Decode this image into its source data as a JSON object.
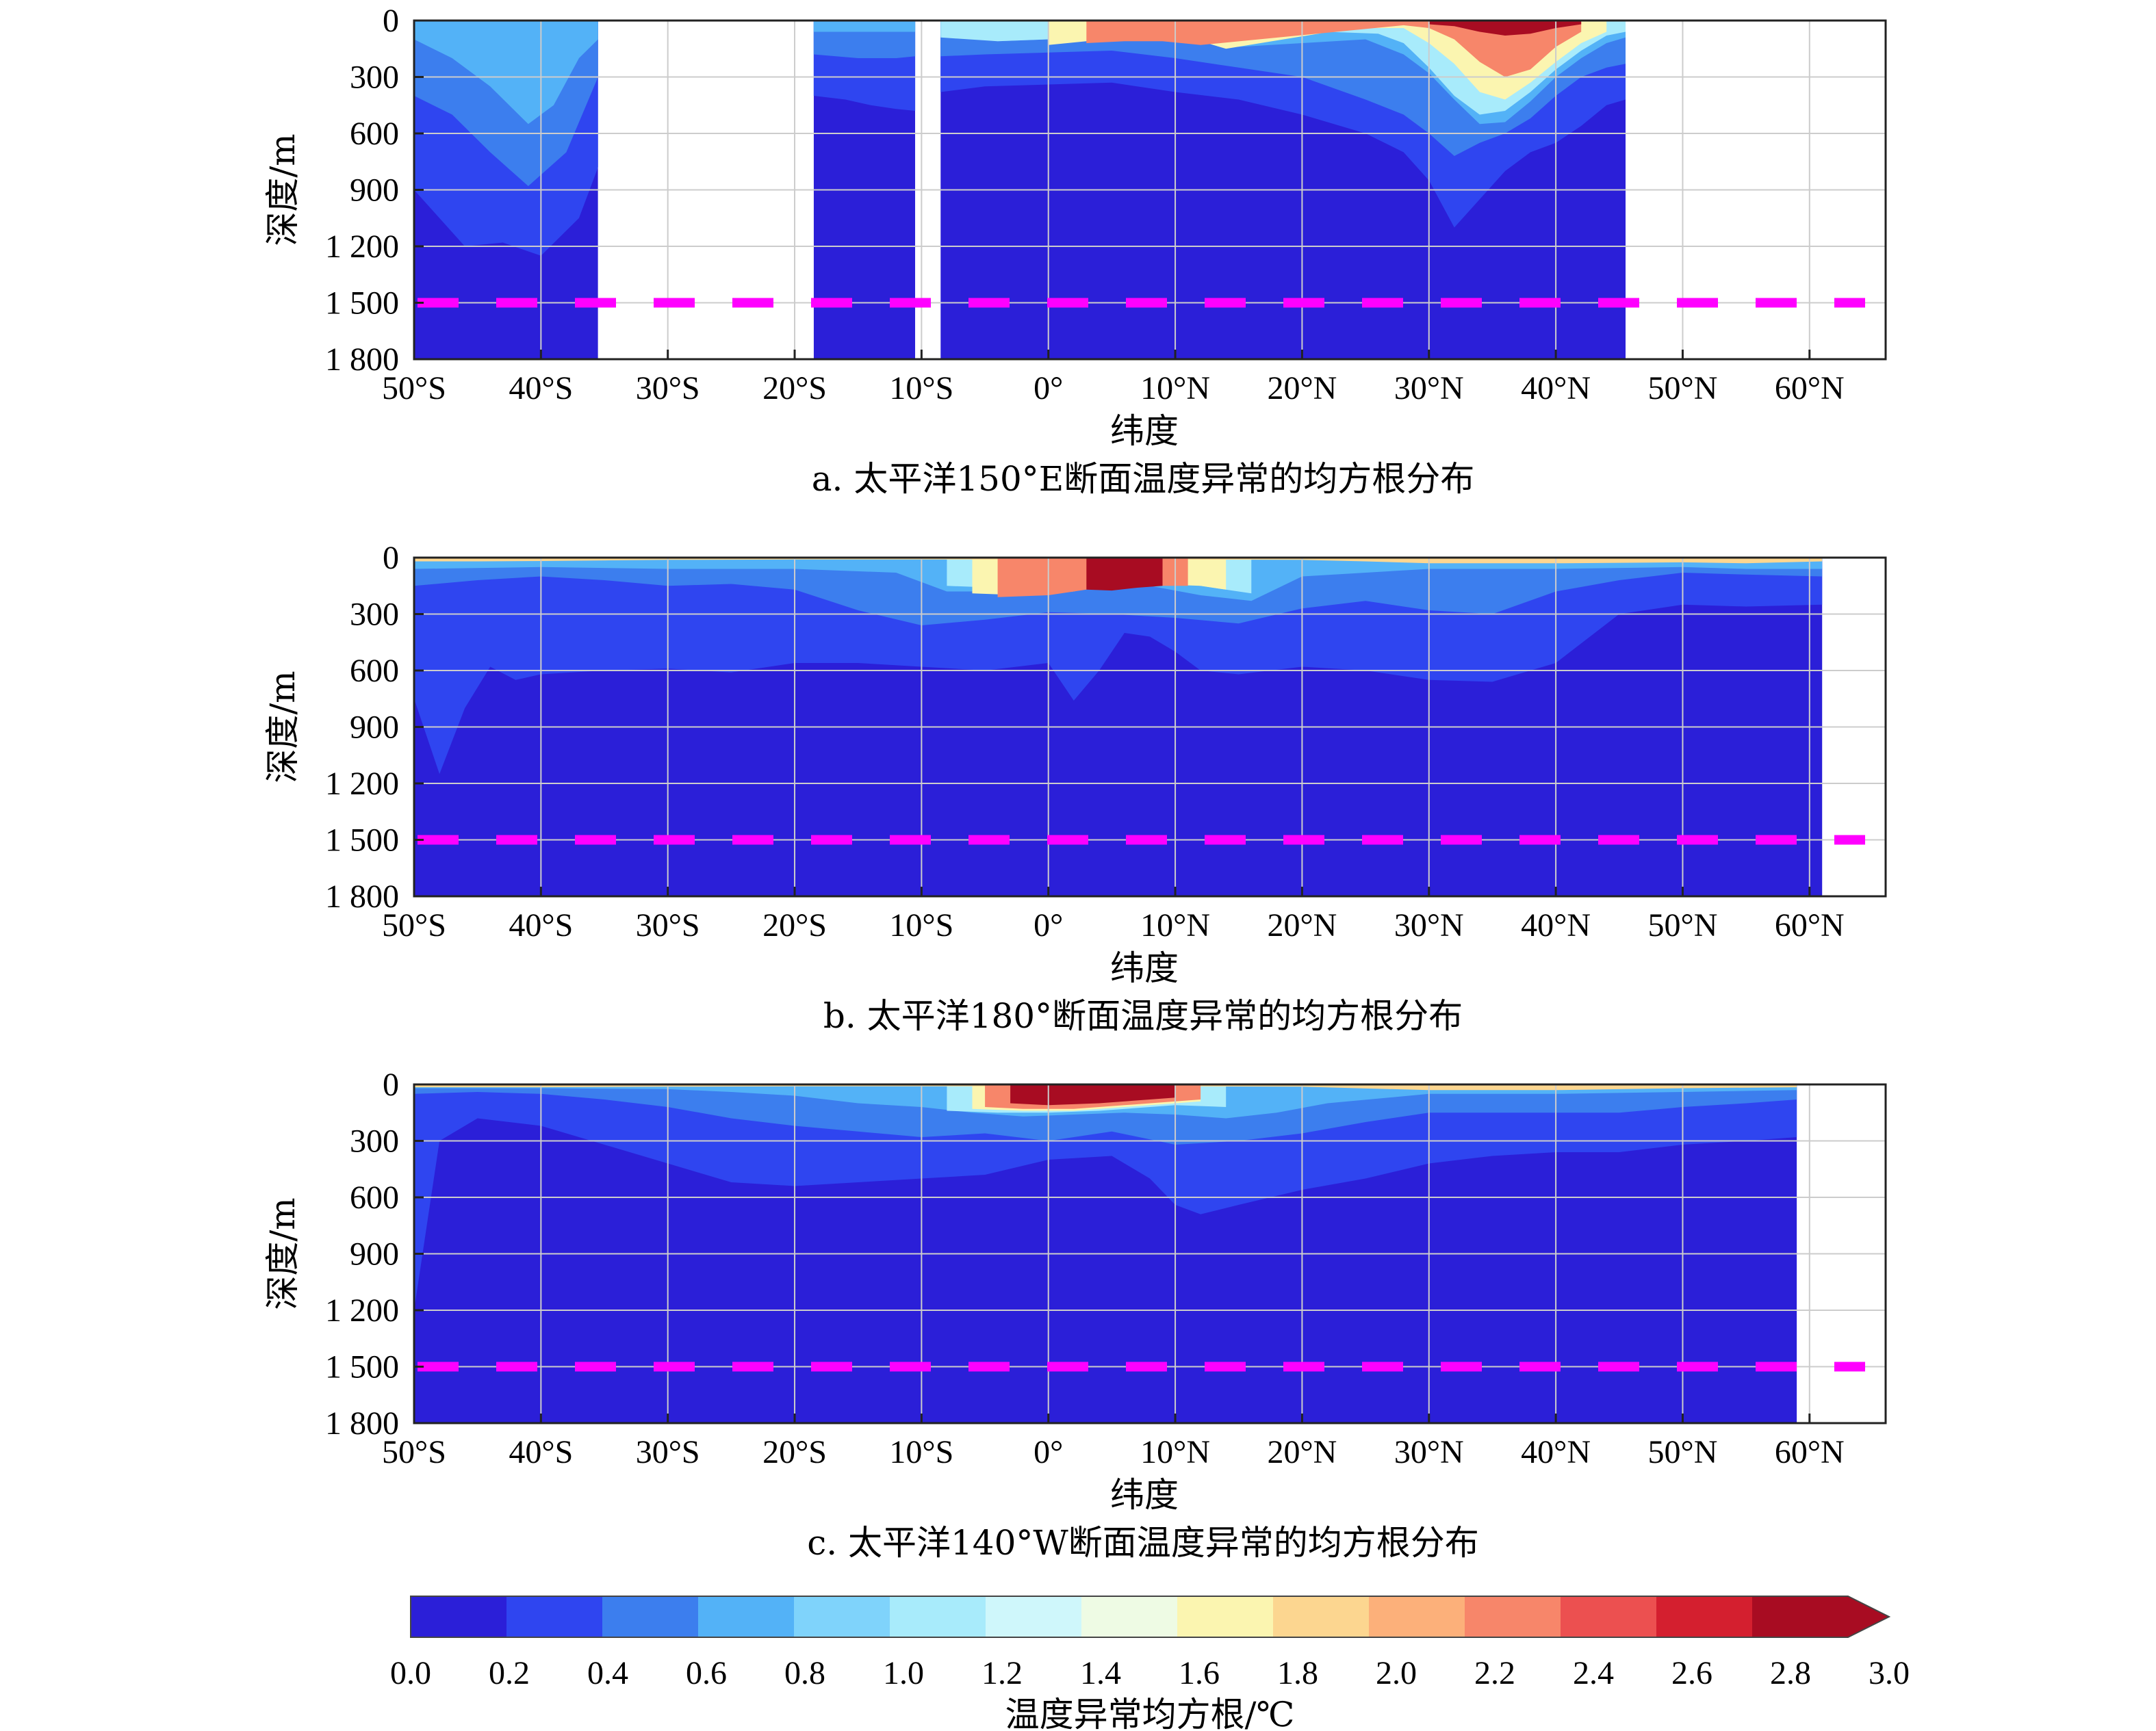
{
  "chart_data": [
    {
      "type": "heatmap",
      "panel_id": "a",
      "caption": "a. 太平洋150°E断面温度异常的均方根分布",
      "ylabel": "深度/m",
      "xlabel": "纬度",
      "y_ticks": [
        "0",
        "300",
        "600",
        "900",
        "1 200",
        "1 500",
        "1 800"
      ],
      "x_ticks": [
        "50°S",
        "40°S",
        "30°S",
        "20°S",
        "10°S",
        "0°",
        "10°N",
        "20°N",
        "30°N",
        "40°N",
        "50°N",
        "60°N"
      ],
      "xlim": [
        -50,
        66
      ],
      "ylim": [
        0,
        1800
      ],
      "y_inverted": true,
      "grid": true,
      "reference_depth": 1500,
      "data_segments": [
        [
          -50,
          -35.5
        ],
        [
          -18.5,
          -10.5
        ],
        [
          -8.5,
          45.5
        ]
      ],
      "contours": [
        {
          "level": 0.2,
          "x": [
            -50,
            -46,
            -43,
            -40,
            -37,
            -35.5,
            -18.5,
            -16,
            -14,
            -12,
            -10.5,
            -8.5,
            -5,
            0,
            5,
            10,
            15,
            20,
            25,
            28,
            30,
            32,
            34,
            36,
            38,
            40,
            42,
            44,
            45.5
          ],
          "y": [
            900,
            1200,
            1180,
            1250,
            1050,
            780,
            400,
            420,
            450,
            470,
            480,
            380,
            350,
            340,
            330,
            380,
            420,
            500,
            600,
            700,
            850,
            1100,
            950,
            800,
            700,
            650,
            560,
            450,
            420
          ]
        },
        {
          "level": 0.4,
          "x": [
            -50,
            -47,
            -44,
            -41,
            -38,
            -35.5,
            -18.5,
            -15,
            -12,
            -10.5,
            -8.5,
            -5,
            0,
            5,
            10,
            15,
            20,
            25,
            28,
            30,
            32,
            34,
            36,
            38,
            40,
            42,
            44,
            45.5
          ],
          "y": [
            400,
            500,
            700,
            880,
            700,
            300,
            180,
            200,
            200,
            190,
            190,
            180,
            170,
            160,
            200,
            250,
            300,
            420,
            500,
            600,
            720,
            650,
            600,
            520,
            400,
            300,
            250,
            230
          ]
        },
        {
          "level": 0.6,
          "x": [
            -50,
            -47,
            -44,
            -41,
            -39,
            -37,
            -35.5,
            -18.5,
            -12,
            -10.5,
            -8.5,
            -4,
            0,
            5,
            10,
            15,
            20,
            25,
            28,
            30,
            32,
            34,
            36,
            38,
            40,
            42,
            44,
            45.5
          ],
          "y": [
            100,
            200,
            350,
            550,
            450,
            200,
            100,
            60,
            60,
            60,
            80,
            110,
            100,
            80,
            90,
            140,
            120,
            100,
            180,
            280,
            420,
            550,
            540,
            430,
            300,
            200,
            120,
            90
          ]
        },
        {
          "level": 1.0,
          "x": [
            -8.5,
            -4,
            0,
            4,
            8,
            12,
            15,
            18,
            22,
            26,
            28,
            30,
            32,
            34,
            36,
            38,
            40,
            42,
            44,
            45.5
          ],
          "y": [
            90,
            110,
            100,
            90,
            80,
            110,
            130,
            90,
            60,
            70,
            120,
            250,
            400,
            500,
            480,
            380,
            260,
            160,
            80,
            60
          ]
        },
        {
          "level": 1.6,
          "x": [
            0,
            3,
            6,
            9,
            12,
            14,
            24,
            28,
            30,
            32,
            34,
            36,
            38,
            40,
            42,
            44
          ],
          "y": [
            130,
            110,
            90,
            95,
            110,
            150,
            40,
            40,
            120,
            230,
            380,
            420,
            330,
            220,
            120,
            60
          ]
        },
        {
          "level": 2.2,
          "x": [
            3,
            6,
            9,
            12,
            28,
            30,
            32,
            34,
            36,
            38,
            40,
            42
          ],
          "y": [
            120,
            110,
            110,
            130,
            25,
            40,
            100,
            220,
            300,
            260,
            140,
            60
          ]
        },
        {
          "level": 2.8,
          "x": [
            30,
            32,
            34,
            36,
            38,
            40,
            42
          ],
          "y": [
            20,
            30,
            60,
            80,
            70,
            40,
            20
          ]
        }
      ]
    },
    {
      "type": "heatmap",
      "panel_id": "b",
      "caption": "b. 太平洋180°断面温度异常的均方根分布",
      "ylabel": "深度/m",
      "xlabel": "纬度",
      "y_ticks": [
        "0",
        "300",
        "600",
        "900",
        "1 200",
        "1 500",
        "1 800"
      ],
      "x_ticks": [
        "50°S",
        "40°S",
        "30°S",
        "20°S",
        "10°S",
        "0°",
        "10°N",
        "20°N",
        "30°N",
        "40°N",
        "50°N",
        "60°N"
      ],
      "xlim": [
        -50,
        66
      ],
      "ylim": [
        0,
        1800
      ],
      "y_inverted": true,
      "grid": true,
      "reference_depth": 1500,
      "data_segments": [
        [
          -50,
          61
        ]
      ],
      "contours": [
        {
          "level": 0.2,
          "x": [
            -50,
            -48,
            -46,
            -44,
            -42,
            -40,
            -35,
            -30,
            -25,
            -20,
            -15,
            -10,
            -5,
            0,
            2,
            4,
            6,
            8,
            10,
            12,
            15,
            20,
            25,
            30,
            35,
            40,
            45,
            50,
            55,
            61
          ],
          "y": [
            750,
            1150,
            800,
            580,
            650,
            620,
            600,
            590,
            610,
            560,
            560,
            580,
            600,
            560,
            760,
            600,
            400,
            420,
            500,
            600,
            620,
            580,
            600,
            650,
            660,
            560,
            300,
            250,
            260,
            250
          ]
        },
        {
          "level": 0.4,
          "x": [
            -50,
            -45,
            -40,
            -35,
            -30,
            -25,
            -20,
            -15,
            -10,
            -5,
            0,
            5,
            10,
            15,
            20,
            25,
            30,
            35,
            40,
            45,
            50,
            55,
            61
          ],
          "y": [
            150,
            120,
            100,
            120,
            150,
            140,
            170,
            280,
            360,
            330,
            290,
            300,
            320,
            350,
            270,
            230,
            280,
            300,
            180,
            120,
            80,
            90,
            100
          ]
        },
        {
          "level": 0.6,
          "x": [
            -50,
            -40,
            -30,
            -20,
            -12,
            -8,
            -4,
            0,
            4,
            8,
            12,
            16,
            20,
            30,
            40,
            50,
            55,
            61
          ],
          "y": [
            60,
            50,
            60,
            60,
            80,
            180,
            180,
            150,
            140,
            150,
            200,
            230,
            100,
            60,
            60,
            50,
            60,
            60
          ]
        },
        {
          "level": 1.0,
          "x": [
            -8,
            -4,
            0,
            4,
            8,
            12,
            16
          ],
          "y": [
            150,
            160,
            140,
            120,
            120,
            150,
            190
          ]
        },
        {
          "level": 1.6,
          "x": [
            -6,
            -2,
            2,
            4,
            8,
            12,
            14
          ],
          "y": [
            190,
            200,
            180,
            150,
            140,
            150,
            170
          ]
        },
        {
          "level": 2.2,
          "x": [
            -4,
            0,
            3,
            6,
            9,
            11
          ],
          "y": [
            210,
            200,
            170,
            160,
            150,
            150
          ]
        },
        {
          "level": 2.8,
          "x": [
            3,
            5,
            7,
            9
          ],
          "y": [
            170,
            175,
            160,
            150
          ]
        },
        {
          "level": 1.8,
          "x": [
            -50,
            -45,
            -40,
            -35,
            -30,
            -20,
            -10,
            0,
            10,
            20,
            25,
            30,
            40,
            50,
            55,
            61
          ],
          "y": [
            20,
            20,
            18,
            15,
            12,
            10,
            10,
            10,
            10,
            12,
            20,
            30,
            30,
            25,
            30,
            20
          ]
        }
      ]
    },
    {
      "type": "heatmap",
      "panel_id": "c",
      "caption": "c. 太平洋140°W断面温度异常的均方根分布",
      "ylabel": "深度/m",
      "xlabel": "纬度",
      "y_ticks": [
        "0",
        "300",
        "600",
        "900",
        "1 200",
        "1 500",
        "1 800"
      ],
      "x_ticks": [
        "50°S",
        "40°S",
        "30°S",
        "20°S",
        "10°S",
        "0°",
        "10°N",
        "20°N",
        "30°N",
        "40°N",
        "50°N",
        "60°N"
      ],
      "xlim": [
        -50,
        66
      ],
      "ylim": [
        0,
        1800
      ],
      "y_inverted": true,
      "grid": true,
      "reference_depth": 1500,
      "data_segments": [
        [
          -50,
          59
        ]
      ],
      "contours": [
        {
          "level": 0.2,
          "x": [
            -50,
            -48,
            -45,
            -40,
            -35,
            -30,
            -25,
            -20,
            -15,
            -10,
            -5,
            0,
            5,
            8,
            10,
            12,
            15,
            20,
            25,
            30,
            35,
            40,
            45,
            50,
            55,
            59
          ],
          "y": [
            1200,
            300,
            180,
            220,
            320,
            420,
            520,
            540,
            520,
            500,
            480,
            400,
            380,
            500,
            640,
            690,
            640,
            560,
            500,
            420,
            380,
            360,
            360,
            320,
            300,
            280
          ]
        },
        {
          "level": 0.4,
          "x": [
            -50,
            -45,
            -40,
            -35,
            -30,
            -25,
            -20,
            -15,
            -10,
            -5,
            0,
            5,
            10,
            15,
            20,
            25,
            30,
            35,
            40,
            45,
            50,
            55,
            59
          ],
          "y": [
            50,
            40,
            50,
            80,
            120,
            180,
            220,
            250,
            280,
            260,
            300,
            250,
            320,
            300,
            260,
            200,
            150,
            150,
            150,
            150,
            120,
            100,
            80
          ]
        },
        {
          "level": 0.6,
          "x": [
            -50,
            -40,
            -30,
            -25,
            -20,
            -15,
            -10,
            -6,
            -2,
            2,
            6,
            10,
            14,
            18,
            22,
            30,
            40,
            50,
            59
          ],
          "y": [
            20,
            20,
            25,
            40,
            60,
            100,
            120,
            150,
            170,
            160,
            150,
            160,
            180,
            150,
            100,
            50,
            50,
            40,
            30
          ]
        },
        {
          "level": 1.0,
          "x": [
            -8,
            -4,
            0,
            4,
            8,
            10,
            14
          ],
          "y": [
            140,
            150,
            150,
            140,
            120,
            110,
            120
          ]
        },
        {
          "level": 1.6,
          "x": [
            -6,
            -2,
            2,
            6,
            10,
            12
          ],
          "y": [
            130,
            140,
            140,
            120,
            100,
            90
          ]
        },
        {
          "level": 2.2,
          "x": [
            -5,
            -2,
            2,
            6,
            10,
            12
          ],
          "y": [
            120,
            130,
            130,
            110,
            90,
            80
          ]
        },
        {
          "level": 2.8,
          "x": [
            -3,
            0,
            4,
            8,
            10
          ],
          "y": [
            100,
            110,
            100,
            80,
            70
          ]
        },
        {
          "level": 1.8,
          "x": [
            -50,
            -40,
            -30,
            -20,
            -10,
            0,
            10,
            20,
            30,
            40,
            50,
            59
          ],
          "y": [
            15,
            15,
            12,
            10,
            10,
            10,
            10,
            12,
            30,
            30,
            20,
            15
          ]
        }
      ]
    }
  ],
  "colorbar": {
    "label": "温度异常均方根/℃",
    "ticks": [
      "0.0",
      "0.2",
      "0.4",
      "0.6",
      "0.8",
      "1.0",
      "1.2",
      "1.4",
      "1.6",
      "1.8",
      "2.0",
      "2.2",
      "2.4",
      "2.6",
      "2.8",
      "3.0"
    ],
    "levels": [
      0.0,
      0.2,
      0.4,
      0.6,
      0.8,
      1.0,
      1.2,
      1.4,
      1.6,
      1.8,
      2.0,
      2.2,
      2.4,
      2.6,
      2.8,
      3.0
    ],
    "colors": [
      "#2b1fd8",
      "#2f45f0",
      "#3c7eee",
      "#53b2f7",
      "#7fd3fb",
      "#a8ebfb",
      "#cff7fb",
      "#eefbe4",
      "#fbf5b0",
      "#fcd690",
      "#fcb07a",
      "#f7866a",
      "#ec5050",
      "#d41f2f",
      "#a80c22"
    ],
    "extend": "max"
  },
  "colors": {
    "reference_line": "#ff00ff",
    "grid": "#cccccc"
  }
}
